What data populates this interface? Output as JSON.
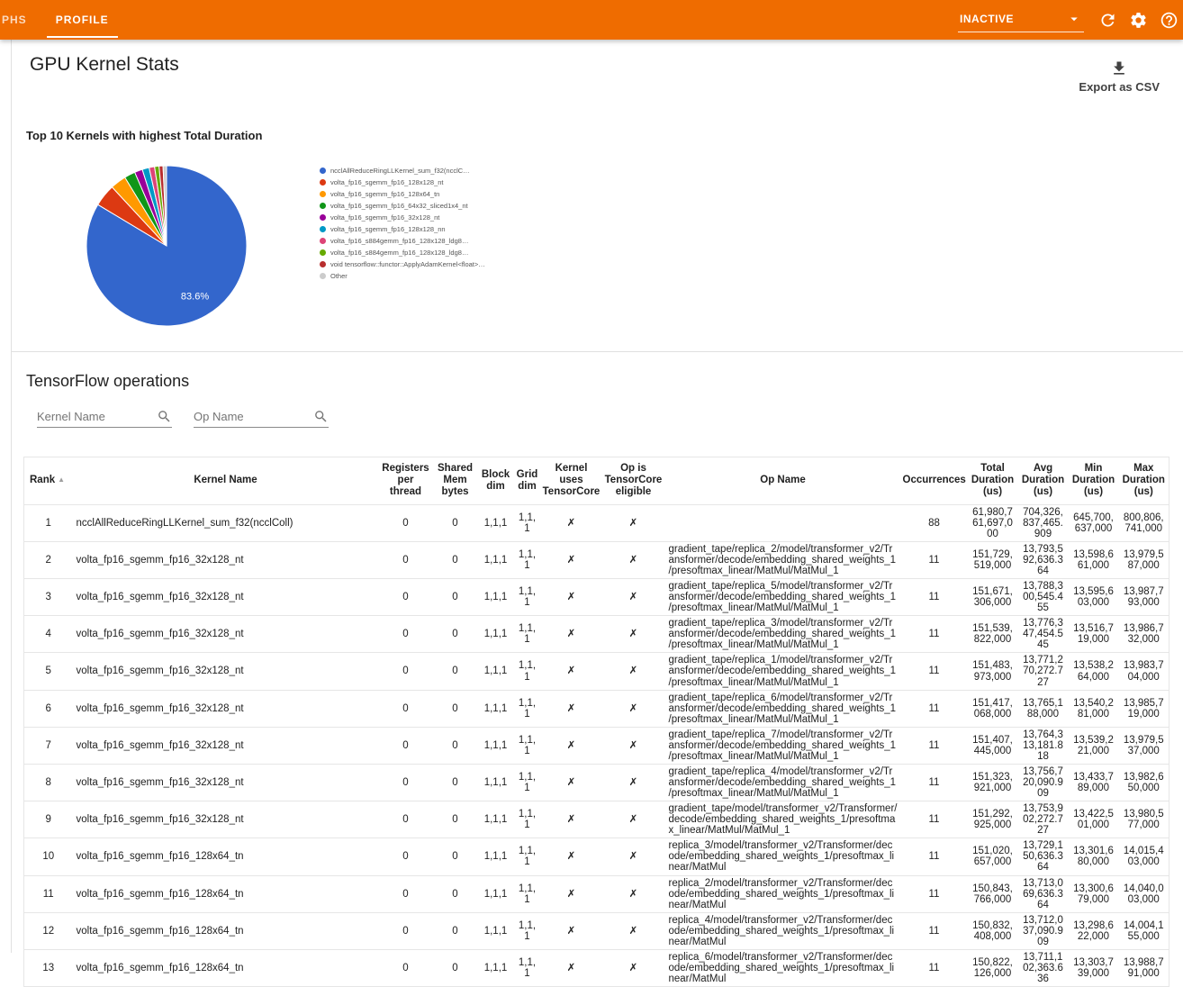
{
  "toolbar": {
    "tabs": [
      {
        "label": "PHS",
        "active": false
      },
      {
        "label": "PROFILE",
        "active": true
      }
    ],
    "run_selector": {
      "value": "INACTIVE"
    },
    "icons": [
      "arrow-drop-down-icon",
      "refresh-icon",
      "settings-gear-icon",
      "help-icon"
    ],
    "accent_color": "#ef6c00"
  },
  "kernel_stats": {
    "title": "GPU Kernel Stats",
    "export_label": "Export as CSV"
  },
  "chart_data": {
    "type": "pie",
    "title": "Top 10 Kernels with highest Total Duration",
    "labels": [
      "ncclAllReduceRingLLKernel_sum_f32(ncclC…",
      "volta_fp16_sgemm_fp16_128x128_nt",
      "volta_fp16_sgemm_fp16_128x64_tn",
      "volta_fp16_sgemm_fp16_64x32_sliced1x4_nt",
      "volta_fp16_sgemm_fp16_32x128_nt",
      "volta_fp16_sgemm_fp16_128x128_nn",
      "volta_fp16_s884gemm_fp16_128x128_ldg8…",
      "volta_fp16_s884gemm_fp16_128x128_ldg8…",
      "void tensorflow::functor::ApplyAdamKernel<float>…",
      "Other"
    ],
    "values": [
      83.6,
      4.5,
      3.2,
      2.2,
      1.6,
      1.4,
      1.1,
      0.9,
      0.8,
      0.7
    ],
    "colors": [
      "#3366cc",
      "#dc3912",
      "#ff9900",
      "#109618",
      "#990099",
      "#0099c6",
      "#dd4477",
      "#66aa00",
      "#b82e2e",
      "#cccccc"
    ],
    "slice_label": "83.6%",
    "legend_position": "right"
  },
  "tf_ops": {
    "title": "TensorFlow operations",
    "kernel_search_placeholder": "Kernel Name",
    "op_search_placeholder": "Op Name",
    "table": {
      "columns": [
        {
          "key": "rank",
          "label": "Rank",
          "sort_arrow": "▲"
        },
        {
          "key": "kernel_name",
          "label": "Kernel Name"
        },
        {
          "key": "registers_per_thread",
          "label": "Registers per thread"
        },
        {
          "key": "shared_mem_bytes",
          "label": "Shared Mem bytes"
        },
        {
          "key": "block_dim",
          "label": "Block dim"
        },
        {
          "key": "grid_dim",
          "label": "Grid dim"
        },
        {
          "key": "kernel_uses_tensorcore",
          "label": "Kernel uses TensorCore"
        },
        {
          "key": "op_is_tensorcore_eligible",
          "label": "Op is TensorCore eligible"
        },
        {
          "key": "op_name",
          "label": "Op Name"
        },
        {
          "key": "occurrences",
          "label": "Occurrences"
        },
        {
          "key": "total_duration_us",
          "label": "Total Duration (us)"
        },
        {
          "key": "avg_duration_us",
          "label": "Avg Duration (us)"
        },
        {
          "key": "min_duration_us",
          "label": "Min Duration (us)"
        },
        {
          "key": "max_duration_us",
          "label": "Max Duration (us)"
        }
      ],
      "rows": [
        {
          "rank": "1",
          "kernel_name": "ncclAllReduceRingLLKernel_sum_f32(ncclColl)",
          "registers_per_thread": "0",
          "shared_mem_bytes": "0",
          "block_dim": "1,1,1",
          "grid_dim": "1,1,1",
          "kernel_uses_tensorcore": "✗",
          "op_is_tensorcore_eligible": "✗",
          "op_name": "",
          "occurrences": "88",
          "total_duration_us": "61,980,761,697,000",
          "avg_duration_us": "704,326,837,465.909",
          "min_duration_us": "645,700,637,000",
          "max_duration_us": "800,806,741,000"
        },
        {
          "rank": "2",
          "kernel_name": "volta_fp16_sgemm_fp16_32x128_nt",
          "registers_per_thread": "0",
          "shared_mem_bytes": "0",
          "block_dim": "1,1,1",
          "grid_dim": "1,1,1",
          "kernel_uses_tensorcore": "✗",
          "op_is_tensorcore_eligible": "✗",
          "op_name": "gradient_tape/replica_2/model/transformer_v2/Transformer/decode/embedding_shared_weights_1/presoftmax_linear/MatMul/MatMul_1",
          "occurrences": "11",
          "total_duration_us": "151,729,519,000",
          "avg_duration_us": "13,793,592,636.364",
          "min_duration_us": "13,598,661,000",
          "max_duration_us": "13,979,587,000"
        },
        {
          "rank": "3",
          "kernel_name": "volta_fp16_sgemm_fp16_32x128_nt",
          "registers_per_thread": "0",
          "shared_mem_bytes": "0",
          "block_dim": "1,1,1",
          "grid_dim": "1,1,1",
          "kernel_uses_tensorcore": "✗",
          "op_is_tensorcore_eligible": "✗",
          "op_name": "gradient_tape/replica_5/model/transformer_v2/Transformer/decode/embedding_shared_weights_1/presoftmax_linear/MatMul/MatMul_1",
          "occurrences": "11",
          "total_duration_us": "151,671,306,000",
          "avg_duration_us": "13,788,300,545.455",
          "min_duration_us": "13,595,603,000",
          "max_duration_us": "13,987,793,000"
        },
        {
          "rank": "4",
          "kernel_name": "volta_fp16_sgemm_fp16_32x128_nt",
          "registers_per_thread": "0",
          "shared_mem_bytes": "0",
          "block_dim": "1,1,1",
          "grid_dim": "1,1,1",
          "kernel_uses_tensorcore": "✗",
          "op_is_tensorcore_eligible": "✗",
          "op_name": "gradient_tape/replica_3/model/transformer_v2/Transformer/decode/embedding_shared_weights_1/presoftmax_linear/MatMul/MatMul_1",
          "occurrences": "11",
          "total_duration_us": "151,539,822,000",
          "avg_duration_us": "13,776,347,454.545",
          "min_duration_us": "13,516,719,000",
          "max_duration_us": "13,986,732,000"
        },
        {
          "rank": "5",
          "kernel_name": "volta_fp16_sgemm_fp16_32x128_nt",
          "registers_per_thread": "0",
          "shared_mem_bytes": "0",
          "block_dim": "1,1,1",
          "grid_dim": "1,1,1",
          "kernel_uses_tensorcore": "✗",
          "op_is_tensorcore_eligible": "✗",
          "op_name": "gradient_tape/replica_1/model/transformer_v2/Transformer/decode/embedding_shared_weights_1/presoftmax_linear/MatMul/MatMul_1",
          "occurrences": "11",
          "total_duration_us": "151,483,973,000",
          "avg_duration_us": "13,771,270,272.727",
          "min_duration_us": "13,538,264,000",
          "max_duration_us": "13,983,704,000"
        },
        {
          "rank": "6",
          "kernel_name": "volta_fp16_sgemm_fp16_32x128_nt",
          "registers_per_thread": "0",
          "shared_mem_bytes": "0",
          "block_dim": "1,1,1",
          "grid_dim": "1,1,1",
          "kernel_uses_tensorcore": "✗",
          "op_is_tensorcore_eligible": "✗",
          "op_name": "gradient_tape/replica_6/model/transformer_v2/Transformer/decode/embedding_shared_weights_1/presoftmax_linear/MatMul/MatMul_1",
          "occurrences": "11",
          "total_duration_us": "151,417,068,000",
          "avg_duration_us": "13,765,188,000",
          "min_duration_us": "13,540,281,000",
          "max_duration_us": "13,985,719,000"
        },
        {
          "rank": "7",
          "kernel_name": "volta_fp16_sgemm_fp16_32x128_nt",
          "registers_per_thread": "0",
          "shared_mem_bytes": "0",
          "block_dim": "1,1,1",
          "grid_dim": "1,1,1",
          "kernel_uses_tensorcore": "✗",
          "op_is_tensorcore_eligible": "✗",
          "op_name": "gradient_tape/replica_7/model/transformer_v2/Transformer/decode/embedding_shared_weights_1/presoftmax_linear/MatMul/MatMul_1",
          "occurrences": "11",
          "total_duration_us": "151,407,445,000",
          "avg_duration_us": "13,764,313,181.818",
          "min_duration_us": "13,539,221,000",
          "max_duration_us": "13,979,537,000"
        },
        {
          "rank": "8",
          "kernel_name": "volta_fp16_sgemm_fp16_32x128_nt",
          "registers_per_thread": "0",
          "shared_mem_bytes": "0",
          "block_dim": "1,1,1",
          "grid_dim": "1,1,1",
          "kernel_uses_tensorcore": "✗",
          "op_is_tensorcore_eligible": "✗",
          "op_name": "gradient_tape/replica_4/model/transformer_v2/Transformer/decode/embedding_shared_weights_1/presoftmax_linear/MatMul/MatMul_1",
          "occurrences": "11",
          "total_duration_us": "151,323,921,000",
          "avg_duration_us": "13,756,720,090.909",
          "min_duration_us": "13,433,789,000",
          "max_duration_us": "13,982,650,000"
        },
        {
          "rank": "9",
          "kernel_name": "volta_fp16_sgemm_fp16_32x128_nt",
          "registers_per_thread": "0",
          "shared_mem_bytes": "0",
          "block_dim": "1,1,1",
          "grid_dim": "1,1,1",
          "kernel_uses_tensorcore": "✗",
          "op_is_tensorcore_eligible": "✗",
          "op_name": "gradient_tape/model/transformer_v2/Transformer/decode/embedding_shared_weights_1/presoftmax_linear/MatMul/MatMul_1",
          "occurrences": "11",
          "total_duration_us": "151,292,925,000",
          "avg_duration_us": "13,753,902,272.727",
          "min_duration_us": "13,422,501,000",
          "max_duration_us": "13,980,577,000"
        },
        {
          "rank": "10",
          "kernel_name": "volta_fp16_sgemm_fp16_128x64_tn",
          "registers_per_thread": "0",
          "shared_mem_bytes": "0",
          "block_dim": "1,1,1",
          "grid_dim": "1,1,1",
          "kernel_uses_tensorcore": "✗",
          "op_is_tensorcore_eligible": "✗",
          "op_name": "replica_3/model/transformer_v2/Transformer/decode/embedding_shared_weights_1/presoftmax_linear/MatMul",
          "occurrences": "11",
          "total_duration_us": "151,020,657,000",
          "avg_duration_us": "13,729,150,636.364",
          "min_duration_us": "13,301,680,000",
          "max_duration_us": "14,015,403,000"
        },
        {
          "rank": "11",
          "kernel_name": "volta_fp16_sgemm_fp16_128x64_tn",
          "registers_per_thread": "0",
          "shared_mem_bytes": "0",
          "block_dim": "1,1,1",
          "grid_dim": "1,1,1",
          "kernel_uses_tensorcore": "✗",
          "op_is_tensorcore_eligible": "✗",
          "op_name": "replica_2/model/transformer_v2/Transformer/decode/embedding_shared_weights_1/presoftmax_linear/MatMul",
          "occurrences": "11",
          "total_duration_us": "150,843,766,000",
          "avg_duration_us": "13,713,069,636.364",
          "min_duration_us": "13,300,679,000",
          "max_duration_us": "14,040,003,000"
        },
        {
          "rank": "12",
          "kernel_name": "volta_fp16_sgemm_fp16_128x64_tn",
          "registers_per_thread": "0",
          "shared_mem_bytes": "0",
          "block_dim": "1,1,1",
          "grid_dim": "1,1,1",
          "kernel_uses_tensorcore": "✗",
          "op_is_tensorcore_eligible": "✗",
          "op_name": "replica_4/model/transformer_v2/Transformer/decode/embedding_shared_weights_1/presoftmax_linear/MatMul",
          "occurrences": "11",
          "total_duration_us": "150,832,408,000",
          "avg_duration_us": "13,712,037,090.909",
          "min_duration_us": "13,298,622,000",
          "max_duration_us": "14,004,155,000"
        },
        {
          "rank": "13",
          "kernel_name": "volta_fp16_sgemm_fp16_128x64_tn",
          "registers_per_thread": "0",
          "shared_mem_bytes": "0",
          "block_dim": "1,1,1",
          "grid_dim": "1,1,1",
          "kernel_uses_tensorcore": "✗",
          "op_is_tensorcore_eligible": "✗",
          "op_name": "replica_6/model/transformer_v2/Transformer/decode/embedding_shared_weights_1/presoftmax_linear/MatMul",
          "occurrences": "11",
          "total_duration_us": "150,822,126,000",
          "avg_duration_us": "13,711,102,363.636",
          "min_duration_us": "13,303,739,000",
          "max_duration_us": "13,988,791,000"
        }
      ]
    }
  }
}
